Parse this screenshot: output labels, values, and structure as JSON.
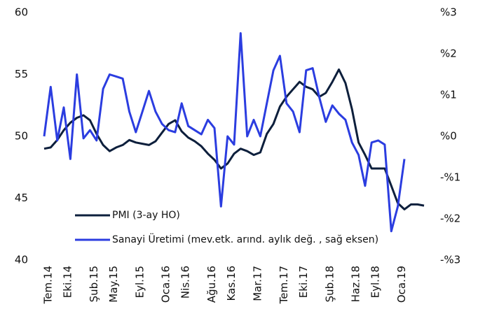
{
  "chart_data": {
    "type": "line",
    "categories": [
      "Tem.14",
      null,
      null,
      "Eki.14",
      null,
      null,
      null,
      "Şub.15",
      null,
      null,
      "May.15",
      null,
      null,
      null,
      "Eyl.15",
      null,
      null,
      null,
      "Oca.16",
      null,
      null,
      "Nis.16",
      null,
      null,
      null,
      "Ağu.16",
      null,
      null,
      "Kas.16",
      null,
      null,
      null,
      "Mar.17",
      null,
      null,
      null,
      "Tem.17",
      null,
      null,
      "Eki.17",
      null,
      null,
      null,
      "Şub.18",
      null,
      null,
      null,
      "Haz.18",
      null,
      null,
      "Eyl.18",
      null,
      null,
      null,
      "Oca.19",
      null,
      null,
      null,
      null
    ],
    "series": [
      {
        "name": "PMI (3-ay HO)",
        "color": "#0d1f3c",
        "values": [
          49.0,
          49.1,
          49.7,
          50.5,
          51.1,
          51.5,
          51.7,
          51.3,
          50.2,
          49.3,
          48.8,
          49.1,
          49.3,
          49.7,
          49.5,
          49.4,
          49.3,
          49.6,
          50.3,
          51.0,
          51.3,
          50.4,
          49.9,
          49.6,
          49.2,
          48.6,
          48.1,
          47.4,
          47.8,
          48.6,
          49.0,
          48.8,
          48.5,
          48.7,
          50.2,
          51.0,
          52.4,
          53.2,
          53.8,
          54.4,
          54.0,
          53.8,
          53.2,
          53.5,
          54.4,
          55.4,
          54.3,
          52.2,
          49.5,
          48.5,
          47.4,
          47.4,
          47.4,
          46.0,
          44.6,
          44.1,
          44.5,
          44.5,
          44.4
        ]
      },
      {
        "name": "Sanayi Üretimi (mev.etk. arınd. aylık değ. , sağ eksen)",
        "color": "#2b3de0",
        "axis": "y2",
        "values": [
          0.0,
          1.2,
          -0.1,
          0.7,
          -0.55,
          1.5,
          -0.05,
          0.15,
          -0.1,
          1.15,
          1.5,
          1.45,
          1.4,
          0.6,
          0.1,
          0.6,
          1.1,
          0.6,
          0.3,
          0.15,
          0.1,
          0.8,
          0.25,
          0.15,
          0.05,
          0.4,
          0.2,
          -1.7,
          0.0,
          -0.2,
          2.5,
          0.0,
          0.4,
          0.0,
          0.8,
          1.6,
          1.95,
          0.8,
          0.6,
          0.1,
          1.6,
          1.65,
          0.95,
          0.35,
          0.75,
          0.55,
          0.4,
          -0.15,
          -0.45,
          -1.2,
          -0.15,
          -0.1,
          -0.2,
          -2.3,
          -1.7,
          -0.55,
          null,
          null,
          null
        ]
      }
    ],
    "ylim": [
      40,
      60
    ],
    "yticks": [
      40,
      45,
      50,
      55,
      60
    ],
    "y2lim": [
      -3,
      3
    ],
    "y2ticks": [
      {
        "value": -3,
        "label": "-%3"
      },
      {
        "value": -2,
        "label": "-%2"
      },
      {
        "value": -1,
        "label": "-%1"
      },
      {
        "value": 0,
        "label": "%0"
      },
      {
        "value": 1,
        "label": "%1"
      },
      {
        "value": 2,
        "label": "%2"
      },
      {
        "value": 3,
        "label": "%3"
      }
    ],
    "grid": false
  }
}
